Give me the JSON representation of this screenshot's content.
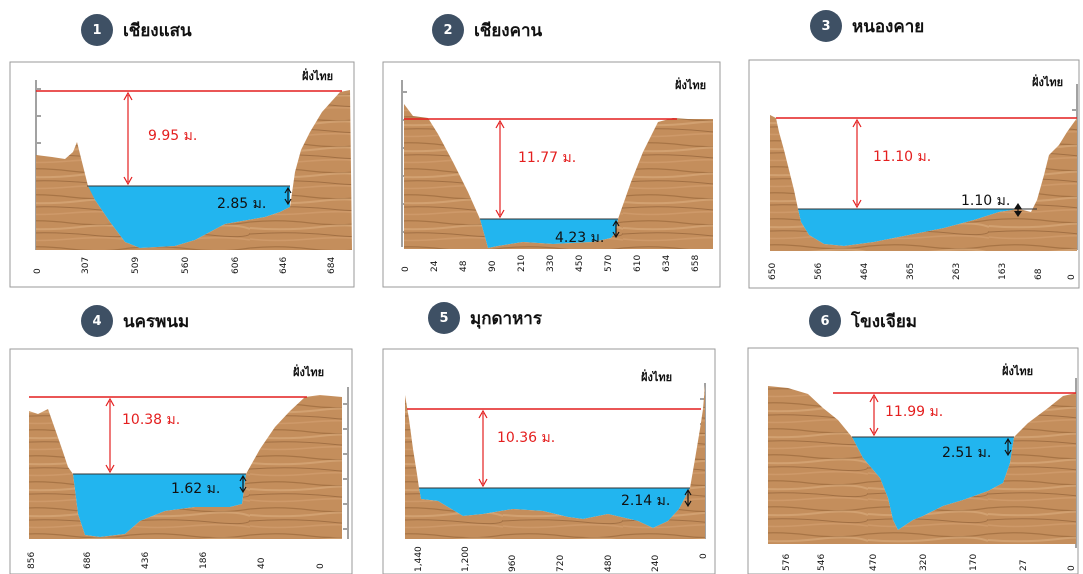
{
  "colors": {
    "badge": "#3e5064",
    "flood_line": "#e41f1f",
    "water": "#22b5ef",
    "ground": "#c48e5c"
  },
  "bank_label": "ฝั่งไทย",
  "stations": [
    {
      "num": "1",
      "name": "เชียงแสน",
      "flood_label": "9.95 ม.",
      "water_label": "2.85 ม.",
      "ticks": [
        "0",
        "307",
        "509",
        "560",
        "606",
        "646",
        "684"
      ]
    },
    {
      "num": "2",
      "name": "เชียงคาน",
      "flood_label": "11.77 ม.",
      "water_label": "4.23 ม.",
      "ticks": [
        "0",
        "24",
        "48",
        "90",
        "210",
        "330",
        "450",
        "570",
        "610",
        "634",
        "658"
      ]
    },
    {
      "num": "3",
      "name": "หนองคาย",
      "flood_label": "11.10 ม.",
      "water_label": "1.10 ม.",
      "ticks": [
        "650",
        "566",
        "464",
        "365",
        "263",
        "163",
        "68",
        "0"
      ]
    },
    {
      "num": "4",
      "name": "นครพนม",
      "flood_label": "10.38 ม.",
      "water_label": "1.62 ม.",
      "ticks": [
        "856",
        "686",
        "436",
        "186",
        "40",
        "0"
      ]
    },
    {
      "num": "5",
      "name": "มุกดาหาร",
      "flood_label": "10.36 ม.",
      "water_label": "2.14 ม.",
      "ticks": [
        "1,440",
        "1,200",
        "960",
        "720",
        "480",
        "240",
        "0"
      ]
    },
    {
      "num": "6",
      "name": "โขงเจียม",
      "flood_label": "11.99 ม.",
      "water_label": "2.51 ม.",
      "ticks": [
        "576",
        "546",
        "470",
        "320",
        "170",
        "27",
        "0"
      ]
    }
  ]
}
